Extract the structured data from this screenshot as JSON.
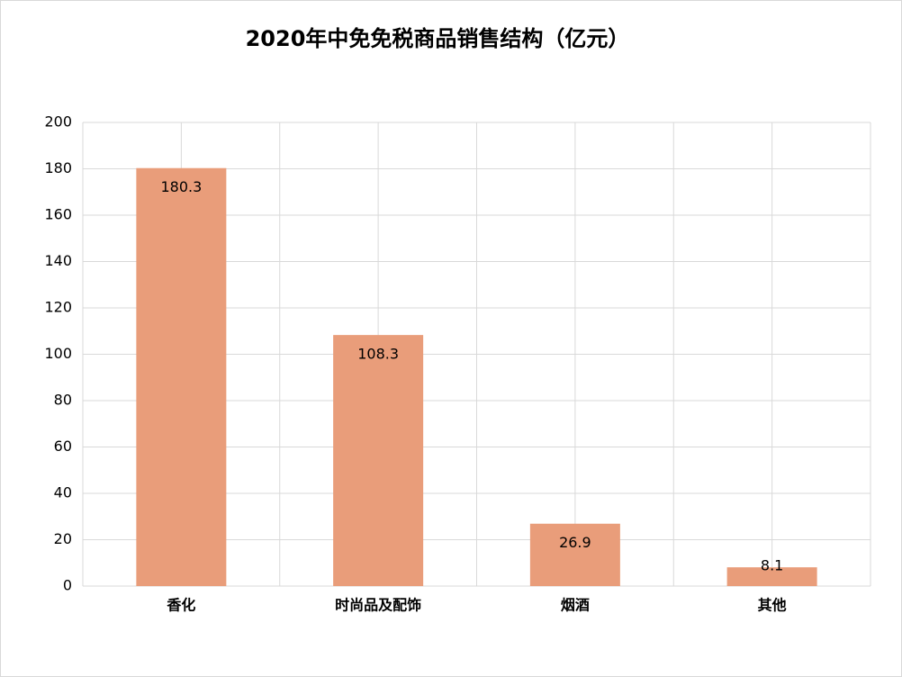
{
  "chart_data": {
    "type": "bar",
    "title": "2020年中免免税商品销售结构（亿元）",
    "categories": [
      "香化",
      "时尚品及配饰",
      "烟酒",
      "其他"
    ],
    "values": [
      180.3,
      108.3,
      26.9,
      8.1
    ],
    "color": "#e99d7a",
    "ylim": [
      0,
      200
    ],
    "yticks": [
      0,
      20,
      40,
      60,
      80,
      100,
      120,
      140,
      160,
      180,
      200
    ],
    "grid": true
  }
}
